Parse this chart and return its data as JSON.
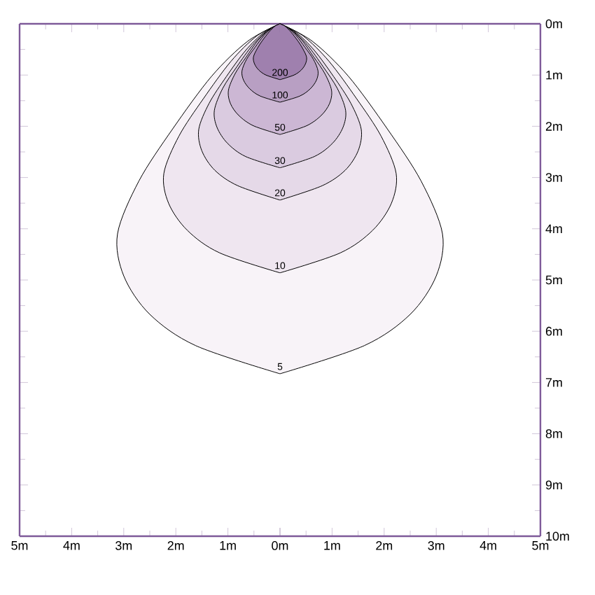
{
  "chart_data": [
    {
      "type": "area",
      "xlim": [
        5,
        0
      ],
      "ylim": [
        10,
        0
      ],
      "tick_labels": "x",
      "xticks": [
        {
          "value": 5,
          "label": "5m"
        },
        {
          "value": 4,
          "label": "4m"
        },
        {
          "value": 3,
          "label": "3m"
        },
        {
          "value": 2,
          "label": "2m"
        },
        {
          "value": 1,
          "label": "1m"
        },
        {
          "value": 0,
          "label": "0m"
        }
      ],
      "yticks": [
        0,
        1,
        2,
        3,
        4,
        5,
        6,
        7,
        8,
        9,
        10
      ],
      "series": [
        {
          "color": "#f8f3f8",
          "x": [
            0,
            0.62,
            1.31,
            2.06,
            2.71,
            3.12,
            3.0,
            2.5,
            1.62,
            0
          ],
          "values": [
            0,
            0.34,
            1.02,
            2.05,
            3.07,
            4.1,
            4.92,
            5.67,
            6.28,
            6.83
          ]
        },
        {
          "color": "#efe6f0",
          "x": [
            0,
            0.45,
            0.94,
            1.47,
            1.94,
            2.23,
            2.14,
            1.78,
            1.16,
            0
          ],
          "values": [
            0,
            0.24,
            0.73,
            1.46,
            2.19,
            2.92,
            3.5,
            4.03,
            4.47,
            4.86
          ]
        },
        {
          "color": "#e5d9e8",
          "x": [
            0,
            0.31,
            0.66,
            1.03,
            1.36,
            1.56,
            1.5,
            1.25,
            0.81,
            0
          ],
          "values": [
            0,
            0.17,
            0.52,
            1.03,
            1.55,
            2.06,
            2.48,
            2.86,
            3.16,
            3.44
          ]
        },
        {
          "color": "#dacbe0",
          "x": [
            0,
            0.25,
            0.53,
            0.83,
            1.1,
            1.26,
            1.21,
            1.01,
            0.66,
            0
          ],
          "values": [
            0,
            0.14,
            0.42,
            0.84,
            1.26,
            1.69,
            2.02,
            2.33,
            2.59,
            2.81
          ]
        },
        {
          "color": "#ccb7d4",
          "x": [
            0,
            0.2,
            0.42,
            0.65,
            0.86,
            0.99,
            0.95,
            0.79,
            0.51,
            0
          ],
          "values": [
            0,
            0.11,
            0.32,
            0.65,
            0.97,
            1.3,
            1.56,
            1.79,
            1.99,
            2.16
          ]
        },
        {
          "color": "#b89fc3",
          "x": [
            0,
            0.15,
            0.31,
            0.48,
            0.64,
            0.73,
            0.7,
            0.58,
            0.38,
            0
          ],
          "values": [
            0,
            0.08,
            0.23,
            0.46,
            0.69,
            0.92,
            1.1,
            1.27,
            1.41,
            1.53
          ]
        },
        {
          "color": "#9f80ae",
          "x": [
            0,
            0.1,
            0.21,
            0.34,
            0.44,
            0.51,
            0.49,
            0.41,
            0.27,
            0
          ],
          "values": [
            0,
            0.05,
            0.16,
            0.33,
            0.49,
            0.65,
            0.78,
            0.9,
            1.0,
            1.09
          ]
        }
      ]
    },
    {
      "type": "area",
      "xlim": [
        0,
        5
      ],
      "ylim": [
        10,
        0
      ],
      "xticks": [
        {
          "value": 0,
          "label": null
        },
        {
          "value": 1,
          "label": "1m"
        },
        {
          "value": 2,
          "label": "2m"
        },
        {
          "value": 3,
          "label": "3m"
        },
        {
          "value": 4,
          "label": "4m"
        },
        {
          "value": 5,
          "label": "5m"
        }
      ],
      "yticks": [
        {
          "value": 0,
          "label": "0m"
        },
        {
          "value": 1,
          "label": "1m"
        },
        {
          "value": 2,
          "label": "2m"
        },
        {
          "value": 3,
          "label": "3m"
        },
        {
          "value": 4,
          "label": "4m"
        },
        {
          "value": 5,
          "label": "5m"
        },
        {
          "value": 6,
          "label": "6m"
        },
        {
          "value": 7,
          "label": "7m"
        },
        {
          "value": 8,
          "label": "8m"
        },
        {
          "value": 9,
          "label": "9m"
        },
        {
          "value": 10,
          "label": "10m"
        }
      ],
      "series": [
        {
          "name": "5",
          "color": "#f8f3f8",
          "x": [
            0,
            0.62,
            1.31,
            2.06,
            2.71,
            3.12,
            3.0,
            2.5,
            1.62,
            0
          ],
          "values": [
            0,
            0.34,
            1.02,
            2.05,
            3.07,
            4.1,
            4.92,
            5.67,
            6.28,
            6.83
          ]
        },
        {
          "name": "10",
          "color": "#efe6f0",
          "x": [
            0,
            0.45,
            0.94,
            1.47,
            1.94,
            2.23,
            2.14,
            1.78,
            1.16,
            0
          ],
          "values": [
            0,
            0.24,
            0.73,
            1.46,
            2.19,
            2.92,
            3.5,
            4.03,
            4.47,
            4.86
          ]
        },
        {
          "name": "20",
          "color": "#e5d9e8",
          "x": [
            0,
            0.31,
            0.66,
            1.03,
            1.36,
            1.56,
            1.5,
            1.25,
            0.81,
            0
          ],
          "values": [
            0,
            0.17,
            0.52,
            1.03,
            1.55,
            2.06,
            2.48,
            2.86,
            3.16,
            3.44
          ]
        },
        {
          "name": "30",
          "color": "#dacbe0",
          "x": [
            0,
            0.25,
            0.53,
            0.83,
            1.1,
            1.26,
            1.21,
            1.01,
            0.66,
            0
          ],
          "values": [
            0,
            0.14,
            0.42,
            0.84,
            1.26,
            1.69,
            2.02,
            2.33,
            2.59,
            2.81
          ]
        },
        {
          "name": "50",
          "color": "#ccb7d4",
          "x": [
            0,
            0.2,
            0.42,
            0.65,
            0.86,
            0.99,
            0.95,
            0.79,
            0.51,
            0
          ],
          "values": [
            0,
            0.11,
            0.32,
            0.65,
            0.97,
            1.3,
            1.56,
            1.79,
            1.99,
            2.16
          ]
        },
        {
          "name": "100",
          "color": "#b89fc3",
          "x": [
            0,
            0.15,
            0.31,
            0.48,
            0.64,
            0.73,
            0.7,
            0.58,
            0.38,
            0
          ],
          "values": [
            0,
            0.08,
            0.23,
            0.46,
            0.69,
            0.92,
            1.1,
            1.27,
            1.41,
            1.53
          ]
        },
        {
          "name": "200",
          "color": "#9f80ae",
          "x": [
            0,
            0.1,
            0.21,
            0.34,
            0.44,
            0.51,
            0.49,
            0.41,
            0.27,
            0
          ],
          "values": [
            0,
            0.05,
            0.16,
            0.33,
            0.49,
            0.65,
            0.78,
            0.9,
            1.0,
            1.09
          ]
        }
      ]
    }
  ]
}
